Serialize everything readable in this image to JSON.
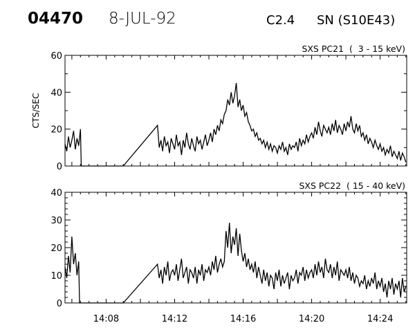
{
  "header": {
    "event_id": "04470",
    "date": "8-JUL-92",
    "flare_class": "C2.4",
    "location": "SN (S10E43)"
  },
  "chart_data": [
    {
      "type": "line",
      "title": "SXS PC21  (  3 - 15 keV)",
      "xlabel": "",
      "ylabel": "CTS/SEC",
      "xlim_min_after_1400": [
        5.6,
        25.55
      ],
      "ylim": [
        0,
        60
      ],
      "yticks": [
        0,
        20,
        40,
        60
      ],
      "ytick_labels": [
        "0",
        "20",
        "40",
        "60"
      ],
      "xtick_labels": [],
      "series": [
        {
          "name": "SXS PC21",
          "segments": [
            {
              "start": 5.6,
              "step": 0.1,
              "values": [
                12,
                8,
                16,
                10,
                14,
                19,
                9,
                15,
                11,
                20
              ]
            },
            {
              "x": [
                6.55,
                9.0
              ],
              "values": [
                0,
                0
              ]
            },
            {
              "start": 11.0,
              "step": 0.1,
              "values": [
                22,
                10,
                14,
                8,
                16,
                11,
                13,
                7,
                15,
                12,
                9,
                17,
                11,
                13,
                6,
                14,
                10,
                18,
                12,
                9,
                15,
                11,
                8,
                16,
                12,
                14,
                9,
                13,
                17,
                11,
                14,
                18,
                13,
                20,
                17,
                22,
                19,
                25,
                23,
                28,
                30,
                36,
                33,
                40,
                34,
                38,
                45,
                32,
                36,
                30,
                33,
                27,
                29,
                24,
                22,
                19,
                20,
                16,
                18,
                14,
                15,
                12,
                14,
                10,
                13,
                9,
                12,
                8,
                11,
                10,
                7,
                11,
                9,
                13,
                8,
                10,
                6,
                12,
                9,
                11,
                10,
                13,
                8,
                15,
                11,
                14,
                12,
                17,
                13,
                16,
                18,
                15,
                21,
                17,
                24,
                19,
                16,
                22,
                20,
                18,
                21,
                17,
                23,
                19,
                25,
                18,
                22,
                20,
                17,
                23,
                19,
                24,
                21,
                27,
                20,
                18,
                23,
                19,
                22,
                16,
                18,
                14,
                17,
                12,
                15,
                13,
                10,
                14,
                11,
                9,
                12,
                8,
                10,
                6,
                9,
                7,
                11,
                5,
                8,
                6,
                4,
                8,
                3,
                7,
                5,
                2
              ]
            }
          ]
        }
      ]
    },
    {
      "type": "line",
      "title": "SXS PC22  ( 15 - 40 keV)",
      "xlabel": "",
      "ylabel": "",
      "xlim_min_after_1400": [
        5.6,
        25.55
      ],
      "ylim": [
        0,
        40
      ],
      "yticks": [
        0,
        10,
        20,
        30,
        40
      ],
      "ytick_labels": [
        "0",
        "10",
        "20",
        "30",
        "40"
      ],
      "xticks": [
        8,
        12,
        16,
        20,
        24
      ],
      "xtick_labels": [
        "14:08",
        "14:12",
        "14:16",
        "14:20",
        "14:24"
      ],
      "series": [
        {
          "name": "SXS PC22",
          "segments": [
            {
              "start": 5.6,
              "step": 0.1,
              "values": [
                13,
                9,
                17,
                11,
                24,
                14,
                18,
                10,
                15
              ]
            },
            {
              "x": [
                6.45,
                9.0
              ],
              "values": [
                0,
                0
              ]
            },
            {
              "start": 11.0,
              "step": 0.1,
              "values": [
                14,
                9,
                12,
                7,
                13,
                10,
                15,
                8,
                11,
                12,
                10,
                14,
                8,
                12,
                16,
                9,
                11,
                13,
                7,
                12,
                11,
                9,
                13,
                7,
                12,
                10,
                14,
                8,
                12,
                11,
                13,
                10,
                15,
                12,
                17,
                11,
                14,
                16,
                13,
                15,
                26,
                20,
                29,
                18,
                24,
                21,
                27,
                17,
                25,
                19,
                15,
                18,
                13,
                16,
                12,
                14,
                11,
                15,
                9,
                13,
                10,
                7,
                12,
                8,
                11,
                6,
                10,
                9,
                5,
                11,
                8,
                12,
                6,
                10,
                7,
                9,
                11,
                5,
                10,
                8,
                9,
                12,
                7,
                11,
                10,
                13,
                8,
                12,
                9,
                11,
                12,
                9,
                14,
                10,
                15,
                11,
                13,
                9,
                16,
                12,
                11,
                14,
                9,
                13,
                10,
                15,
                8,
                12,
                11,
                10,
                12,
                9,
                13,
                8,
                11,
                7,
                10,
                9,
                6,
                8,
                7,
                10,
                5,
                8,
                6,
                9,
                7,
                11,
                5,
                8,
                6,
                9,
                4,
                7,
                2,
                8,
                5,
                9,
                3,
                7,
                5,
                8,
                2,
                9,
                4,
                6
              ]
            }
          ]
        }
      ]
    }
  ]
}
